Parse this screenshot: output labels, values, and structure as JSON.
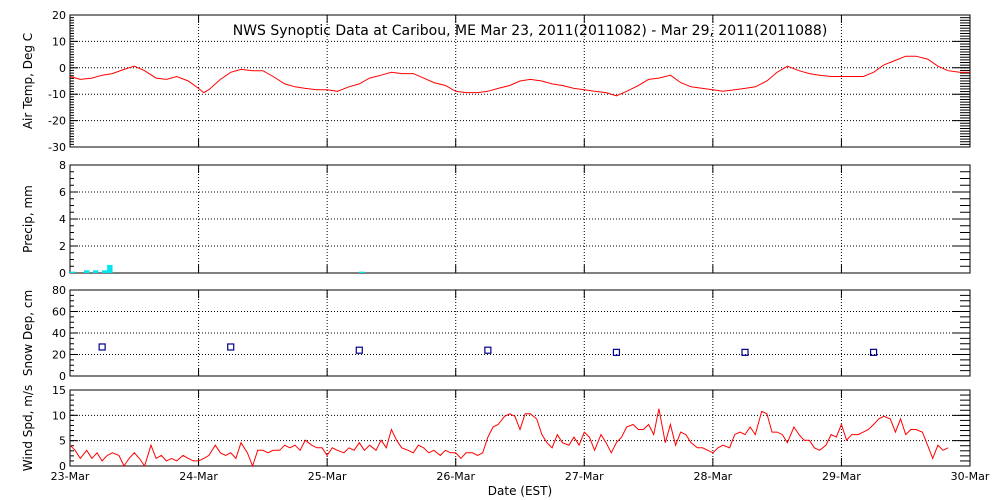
{
  "title": "NWS Synoptic Data at Caribou, ME   Mar 23, 2011(2011082) - Mar 29, 2011(2011088)",
  "xlabel": "Date (EST)",
  "x_ticks": [
    "23-Mar",
    "24-Mar",
    "25-Mar",
    "26-Mar",
    "27-Mar",
    "28-Mar",
    "29-Mar",
    "30-Mar"
  ],
  "colors": {
    "line": "#ff0000",
    "precip": "#00e5ee",
    "snow": "#00008b",
    "grid": "#000000"
  },
  "chart_data": [
    {
      "type": "line",
      "ylabel": "Air Temp, Deg C",
      "ylim": [
        -30,
        20
      ],
      "yticks": [
        20,
        10,
        0,
        -10,
        -20,
        -30
      ],
      "xlim_days": [
        0,
        7
      ],
      "grid": true,
      "series": [
        {
          "values": [
            [
              0.0,
              -3.3
            ],
            [
              0.08,
              -4.4
            ],
            [
              0.17,
              -3.9
            ],
            [
              0.25,
              -2.8
            ],
            [
              0.33,
              -2.2
            ],
            [
              0.42,
              -0.6
            ],
            [
              0.5,
              0.6
            ],
            [
              0.58,
              -1.1
            ],
            [
              0.67,
              -3.9
            ],
            [
              0.75,
              -4.4
            ],
            [
              0.83,
              -3.3
            ],
            [
              0.92,
              -5.0
            ],
            [
              1.0,
              -7.8
            ],
            [
              1.04,
              -9.4
            ],
            [
              1.08,
              -8.3
            ],
            [
              1.17,
              -4.4
            ],
            [
              1.25,
              -1.7
            ],
            [
              1.33,
              -0.6
            ],
            [
              1.42,
              -1.1
            ],
            [
              1.5,
              -1.1
            ],
            [
              1.58,
              -3.3
            ],
            [
              1.67,
              -6.1
            ],
            [
              1.75,
              -7.2
            ],
            [
              1.83,
              -7.8
            ],
            [
              1.92,
              -8.3
            ],
            [
              2.0,
              -8.3
            ],
            [
              2.08,
              -8.9
            ],
            [
              2.17,
              -7.2
            ],
            [
              2.25,
              -6.1
            ],
            [
              2.33,
              -3.9
            ],
            [
              2.42,
              -2.8
            ],
            [
              2.5,
              -1.7
            ],
            [
              2.58,
              -2.2
            ],
            [
              2.67,
              -2.2
            ],
            [
              2.75,
              -3.9
            ],
            [
              2.83,
              -5.6
            ],
            [
              2.92,
              -6.7
            ],
            [
              3.0,
              -8.9
            ],
            [
              3.08,
              -9.4
            ],
            [
              3.17,
              -9.4
            ],
            [
              3.25,
              -8.9
            ],
            [
              3.33,
              -7.8
            ],
            [
              3.42,
              -6.7
            ],
            [
              3.5,
              -5.0
            ],
            [
              3.58,
              -4.4
            ],
            [
              3.67,
              -5.0
            ],
            [
              3.75,
              -6.1
            ],
            [
              3.83,
              -6.7
            ],
            [
              3.92,
              -7.8
            ],
            [
              4.0,
              -8.3
            ],
            [
              4.08,
              -8.9
            ],
            [
              4.17,
              -9.4
            ],
            [
              4.25,
              -10.6
            ],
            [
              4.33,
              -8.9
            ],
            [
              4.42,
              -6.7
            ],
            [
              4.5,
              -4.4
            ],
            [
              4.58,
              -3.9
            ],
            [
              4.67,
              -2.8
            ],
            [
              4.75,
              -5.6
            ],
            [
              4.83,
              -7.2
            ],
            [
              4.92,
              -7.8
            ],
            [
              5.0,
              -8.3
            ],
            [
              5.08,
              -8.9
            ],
            [
              5.17,
              -8.3
            ],
            [
              5.25,
              -7.8
            ],
            [
              5.33,
              -7.2
            ],
            [
              5.42,
              -5.0
            ],
            [
              5.5,
              -1.7
            ],
            [
              5.58,
              0.6
            ],
            [
              5.67,
              -1.1
            ],
            [
              5.75,
              -2.2
            ],
            [
              5.83,
              -2.8
            ],
            [
              5.92,
              -3.3
            ],
            [
              6.0,
              -3.3
            ],
            [
              6.08,
              -3.3
            ],
            [
              6.17,
              -3.3
            ],
            [
              6.25,
              -1.7
            ],
            [
              6.33,
              1.1
            ],
            [
              6.42,
              2.8
            ],
            [
              6.5,
              4.4
            ],
            [
              6.58,
              4.4
            ],
            [
              6.67,
              3.3
            ],
            [
              6.75,
              0.6
            ],
            [
              6.83,
              -1.1
            ],
            [
              6.92,
              -1.7
            ],
            [
              7.0,
              -1.7
            ]
          ]
        }
      ]
    },
    {
      "type": "bar",
      "ylabel": "Precip, mm",
      "ylim": [
        0,
        8
      ],
      "yticks": [
        8,
        6,
        4,
        2,
        0
      ],
      "xlim_days": [
        0,
        7
      ],
      "grid": true,
      "bars": [
        {
          "x": 0.02,
          "value": 0.1
        },
        {
          "x": 0.13,
          "value": 0.2
        },
        {
          "x": 0.2,
          "value": 0.2
        },
        {
          "x": 0.27,
          "value": 0.2
        },
        {
          "x": 0.31,
          "value": 0.6
        },
        {
          "x": 2.27,
          "value": 0.1
        }
      ]
    },
    {
      "type": "scatter",
      "ylabel": "Snow Dep, cm",
      "ylim": [
        0,
        80
      ],
      "yticks": [
        80,
        60,
        40,
        20,
        0
      ],
      "xlim_days": [
        0,
        7
      ],
      "grid": true,
      "points": [
        [
          0.25,
          27
        ],
        [
          1.25,
          27
        ],
        [
          2.25,
          24
        ],
        [
          3.25,
          24
        ],
        [
          4.25,
          22
        ],
        [
          5.25,
          22
        ],
        [
          6.25,
          22
        ]
      ]
    },
    {
      "type": "line",
      "ylabel": "Wind Spd, m/s",
      "ylim": [
        0,
        15
      ],
      "yticks": [
        15,
        10,
        5,
        0
      ],
      "xlim_days": [
        0,
        7
      ],
      "grid": true,
      "series": [
        {
          "values": [
            [
              0.0,
              4.1
            ],
            [
              0.04,
              3.1
            ],
            [
              0.08,
              1.5
            ],
            [
              0.13,
              3.1
            ],
            [
              0.17,
              1.5
            ],
            [
              0.21,
              2.6
            ],
            [
              0.25,
              1.0
            ],
            [
              0.29,
              2.1
            ],
            [
              0.33,
              2.6
            ],
            [
              0.38,
              2.1
            ],
            [
              0.42,
              0.0
            ],
            [
              0.46,
              1.5
            ],
            [
              0.5,
              2.6
            ],
            [
              0.54,
              1.5
            ],
            [
              0.58,
              0.0
            ],
            [
              0.63,
              4.1
            ],
            [
              0.67,
              1.5
            ],
            [
              0.71,
              2.1
            ],
            [
              0.75,
              1.0
            ],
            [
              0.79,
              1.5
            ],
            [
              0.83,
              1.0
            ],
            [
              0.88,
              2.1
            ],
            [
              0.92,
              1.5
            ],
            [
              0.96,
              1.0
            ],
            [
              1.0,
              1.0
            ],
            [
              1.04,
              1.5
            ],
            [
              1.08,
              2.1
            ],
            [
              1.13,
              4.1
            ],
            [
              1.17,
              2.6
            ],
            [
              1.21,
              2.1
            ],
            [
              1.25,
              2.6
            ],
            [
              1.29,
              1.5
            ],
            [
              1.33,
              4.6
            ],
            [
              1.38,
              2.6
            ],
            [
              1.42,
              0.0
            ],
            [
              1.46,
              3.1
            ],
            [
              1.5,
              3.1
            ],
            [
              1.54,
              2.6
            ],
            [
              1.58,
              3.1
            ],
            [
              1.63,
              3.1
            ],
            [
              1.67,
              4.1
            ],
            [
              1.71,
              3.6
            ],
            [
              1.75,
              4.1
            ],
            [
              1.79,
              3.1
            ],
            [
              1.83,
              5.1
            ],
            [
              1.88,
              4.1
            ],
            [
              1.92,
              3.6
            ],
            [
              1.96,
              3.6
            ],
            [
              2.0,
              2.1
            ],
            [
              2.04,
              3.6
            ],
            [
              2.08,
              3.1
            ],
            [
              2.13,
              2.6
            ],
            [
              2.17,
              3.6
            ],
            [
              2.21,
              3.1
            ],
            [
              2.25,
              4.6
            ],
            [
              2.29,
              3.1
            ],
            [
              2.33,
              4.1
            ],
            [
              2.38,
              3.1
            ],
            [
              2.42,
              5.1
            ],
            [
              2.46,
              3.6
            ],
            [
              2.5,
              7.2
            ],
            [
              2.54,
              5.1
            ],
            [
              2.58,
              3.6
            ],
            [
              2.63,
              3.1
            ],
            [
              2.67,
              2.6
            ],
            [
              2.71,
              4.1
            ],
            [
              2.75,
              3.6
            ],
            [
              2.79,
              2.6
            ],
            [
              2.83,
              3.1
            ],
            [
              2.88,
              2.1
            ],
            [
              2.92,
              3.1
            ],
            [
              2.96,
              2.6
            ],
            [
              3.0,
              2.6
            ],
            [
              3.04,
              1.5
            ],
            [
              3.08,
              2.6
            ],
            [
              3.13,
              2.6
            ],
            [
              3.17,
              2.1
            ],
            [
              3.21,
              2.6
            ],
            [
              3.25,
              5.7
            ],
            [
              3.29,
              7.7
            ],
            [
              3.33,
              8.2
            ],
            [
              3.38,
              9.8
            ],
            [
              3.42,
              10.3
            ],
            [
              3.46,
              9.8
            ],
            [
              3.5,
              7.2
            ],
            [
              3.54,
              10.3
            ],
            [
              3.58,
              10.3
            ],
            [
              3.63,
              9.3
            ],
            [
              3.67,
              6.2
            ],
            [
              3.71,
              4.6
            ],
            [
              3.75,
              3.6
            ],
            [
              3.79,
              6.2
            ],
            [
              3.83,
              4.6
            ],
            [
              3.88,
              4.1
            ],
            [
              3.92,
              5.7
            ],
            [
              3.96,
              4.1
            ],
            [
              4.0,
              6.7
            ],
            [
              4.04,
              5.7
            ],
            [
              4.08,
              3.1
            ],
            [
              4.13,
              6.2
            ],
            [
              4.17,
              4.6
            ],
            [
              4.21,
              2.6
            ],
            [
              4.25,
              4.6
            ],
            [
              4.29,
              5.7
            ],
            [
              4.33,
              7.7
            ],
            [
              4.38,
              8.2
            ],
            [
              4.42,
              7.2
            ],
            [
              4.46,
              7.2
            ],
            [
              4.5,
              8.2
            ],
            [
              4.54,
              6.2
            ],
            [
              4.58,
              11.3
            ],
            [
              4.63,
              4.6
            ],
            [
              4.67,
              8.2
            ],
            [
              4.71,
              4.1
            ],
            [
              4.75,
              6.7
            ],
            [
              4.79,
              6.2
            ],
            [
              4.83,
              4.6
            ],
            [
              4.88,
              3.6
            ],
            [
              4.92,
              3.6
            ],
            [
              4.96,
              3.1
            ],
            [
              5.0,
              2.6
            ],
            [
              5.04,
              3.6
            ],
            [
              5.08,
              4.1
            ],
            [
              5.13,
              3.6
            ],
            [
              5.17,
              6.2
            ],
            [
              5.21,
              6.7
            ],
            [
              5.25,
              6.2
            ],
            [
              5.29,
              7.7
            ],
            [
              5.33,
              6.2
            ],
            [
              5.38,
              10.8
            ],
            [
              5.42,
              10.3
            ],
            [
              5.46,
              6.7
            ],
            [
              5.5,
              6.7
            ],
            [
              5.54,
              6.2
            ],
            [
              5.58,
              4.6
            ],
            [
              5.63,
              7.7
            ],
            [
              5.67,
              6.2
            ],
            [
              5.71,
              5.1
            ],
            [
              5.75,
              5.1
            ],
            [
              5.79,
              3.6
            ],
            [
              5.83,
              3.1
            ],
            [
              5.88,
              4.1
            ],
            [
              5.92,
              6.2
            ],
            [
              5.96,
              5.7
            ],
            [
              6.0,
              8.2
            ],
            [
              6.04,
              5.1
            ],
            [
              6.08,
              6.2
            ],
            [
              6.13,
              6.2
            ],
            [
              6.17,
              6.7
            ],
            [
              6.21,
              7.2
            ],
            [
              6.25,
              8.2
            ],
            [
              6.29,
              9.3
            ],
            [
              6.33,
              9.8
            ],
            [
              6.38,
              9.3
            ],
            [
              6.42,
              6.7
            ],
            [
              6.46,
              9.3
            ],
            [
              6.5,
              6.2
            ],
            [
              6.54,
              7.2
            ],
            [
              6.58,
              7.2
            ],
            [
              6.63,
              6.7
            ],
            [
              6.67,
              4.1
            ],
            [
              6.71,
              1.5
            ],
            [
              6.75,
              4.1
            ],
            [
              6.79,
              3.1
            ],
            [
              6.83,
              3.6
            ]
          ]
        }
      ]
    }
  ]
}
